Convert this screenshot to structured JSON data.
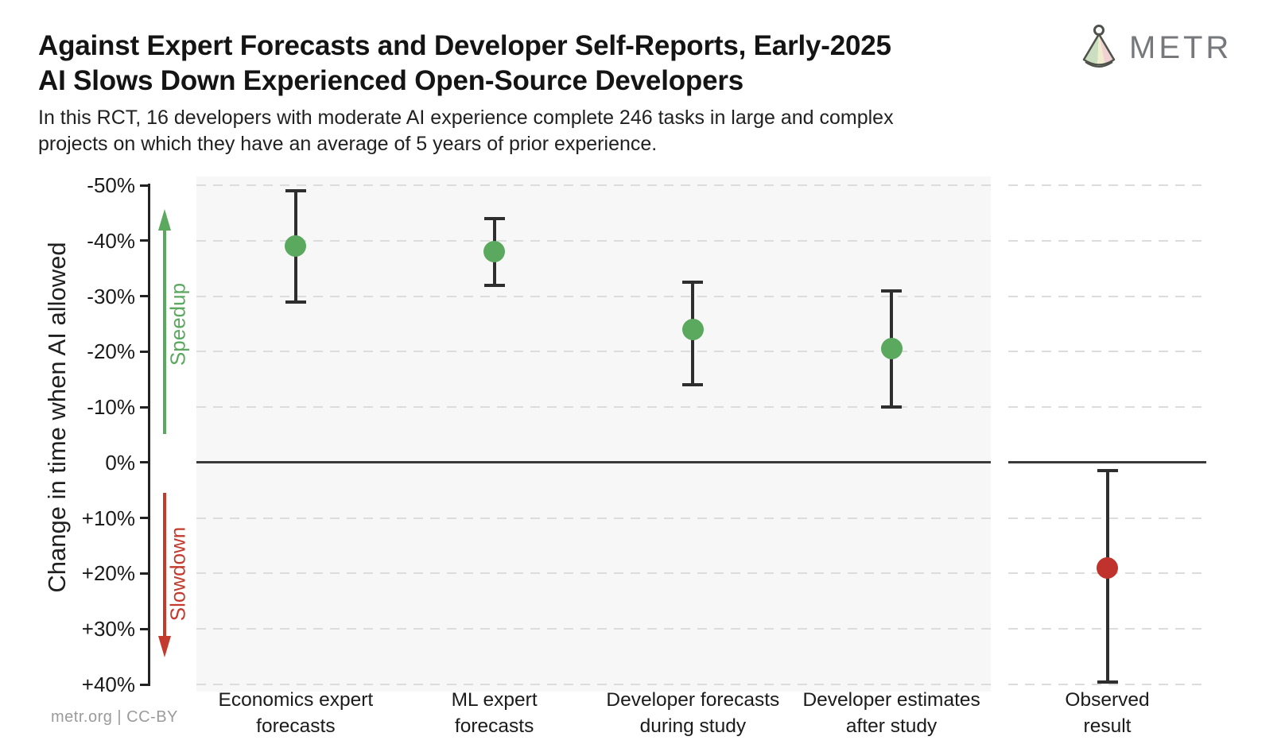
{
  "header": {
    "title_line1": "Against Expert Forecasts and Developer Self-Reports, Early-2025",
    "title_line2": "AI Slows Down Experienced Open-Source Developers",
    "subtitle_line1": "In this RCT, 16 developers with moderate AI experience complete 246 tasks in large and complex",
    "subtitle_line2": "projects on which they have an average of 5 years of prior experience.",
    "logo_text": "METR"
  },
  "footer": {
    "credit": "metr.org  |  CC-BY"
  },
  "annotations": {
    "speedup_label": "Speedup",
    "slowdown_label": "Slowdown"
  },
  "chart_data": {
    "type": "scatter",
    "error_bars": true,
    "title": "Against Expert Forecasts and Developer Self-Reports, Early-2025 AI Slows Down Experienced Open-Source Developers",
    "subtitle": "In this RCT, 16 developers with moderate AI experience complete 246 tasks in large and complex projects on which they have an average of 5 years of prior experience.",
    "ylabel": "Change in time when AI allowed",
    "ylim": [
      -50,
      40
    ],
    "y_axis_inverted_note": "negative (speedup) plotted at top, positive (slowdown) at bottom",
    "grid": "horizontal dashed",
    "legend_position": "none",
    "y_ticks": [
      -50,
      -40,
      -30,
      -20,
      -10,
      0,
      10,
      20,
      30,
      40
    ],
    "y_tick_labels": [
      "-50%",
      "-40%",
      "-30%",
      "-20%",
      "-10%",
      "0%",
      "+10%",
      "+20%",
      "+30%",
      "+40%"
    ],
    "categories": [
      "Economics expert forecasts",
      "ML expert forecasts",
      "Developer forecasts during study",
      "Developer estimates after study",
      "Observed result"
    ],
    "points": [
      {
        "id": "economics-expert-forecasts",
        "label_lines": [
          "Economics expert",
          "forecasts"
        ],
        "panel": "main",
        "xfrac": 0.125,
        "mean": -39,
        "ci": [
          -49,
          -29
        ],
        "group": "forecast",
        "color": "#5ba85f"
      },
      {
        "id": "ml-expert-forecasts",
        "label_lines": [
          "ML expert",
          "forecasts"
        ],
        "panel": "main",
        "xfrac": 0.375,
        "mean": -38,
        "ci": [
          -44,
          -32
        ],
        "group": "forecast",
        "color": "#5ba85f"
      },
      {
        "id": "developer-forecasts-during-study",
        "label_lines": [
          "Developer forecasts",
          "during study"
        ],
        "panel": "main",
        "xfrac": 0.625,
        "mean": -24,
        "ci": [
          -32.5,
          -14
        ],
        "group": "forecast",
        "color": "#5ba85f"
      },
      {
        "id": "developer-estimates-after-study",
        "label_lines": [
          "Developer estimates",
          "after study"
        ],
        "panel": "main",
        "xfrac": 0.875,
        "mean": -20.5,
        "ci": [
          -31,
          -10
        ],
        "group": "forecast",
        "color": "#5ba85f"
      },
      {
        "id": "observed-result",
        "label_lines": [
          "Observed",
          "result"
        ],
        "panel": "observed",
        "xfrac": 0.5,
        "mean": 19,
        "ci": [
          1.5,
          39.5
        ],
        "group": "observed",
        "color": "#bf332c"
      }
    ],
    "colors": {
      "forecast_point": "#5ba85f",
      "observed_point": "#bf332c",
      "speedup_arrow": "#5ba85f",
      "slowdown_arrow": "#c23b2d",
      "errorbar": "#2e2e2e",
      "grid": "#dcdcdc",
      "zero_line": "#3a3a3a",
      "panel_bg": "#f7f7f7"
    }
  }
}
